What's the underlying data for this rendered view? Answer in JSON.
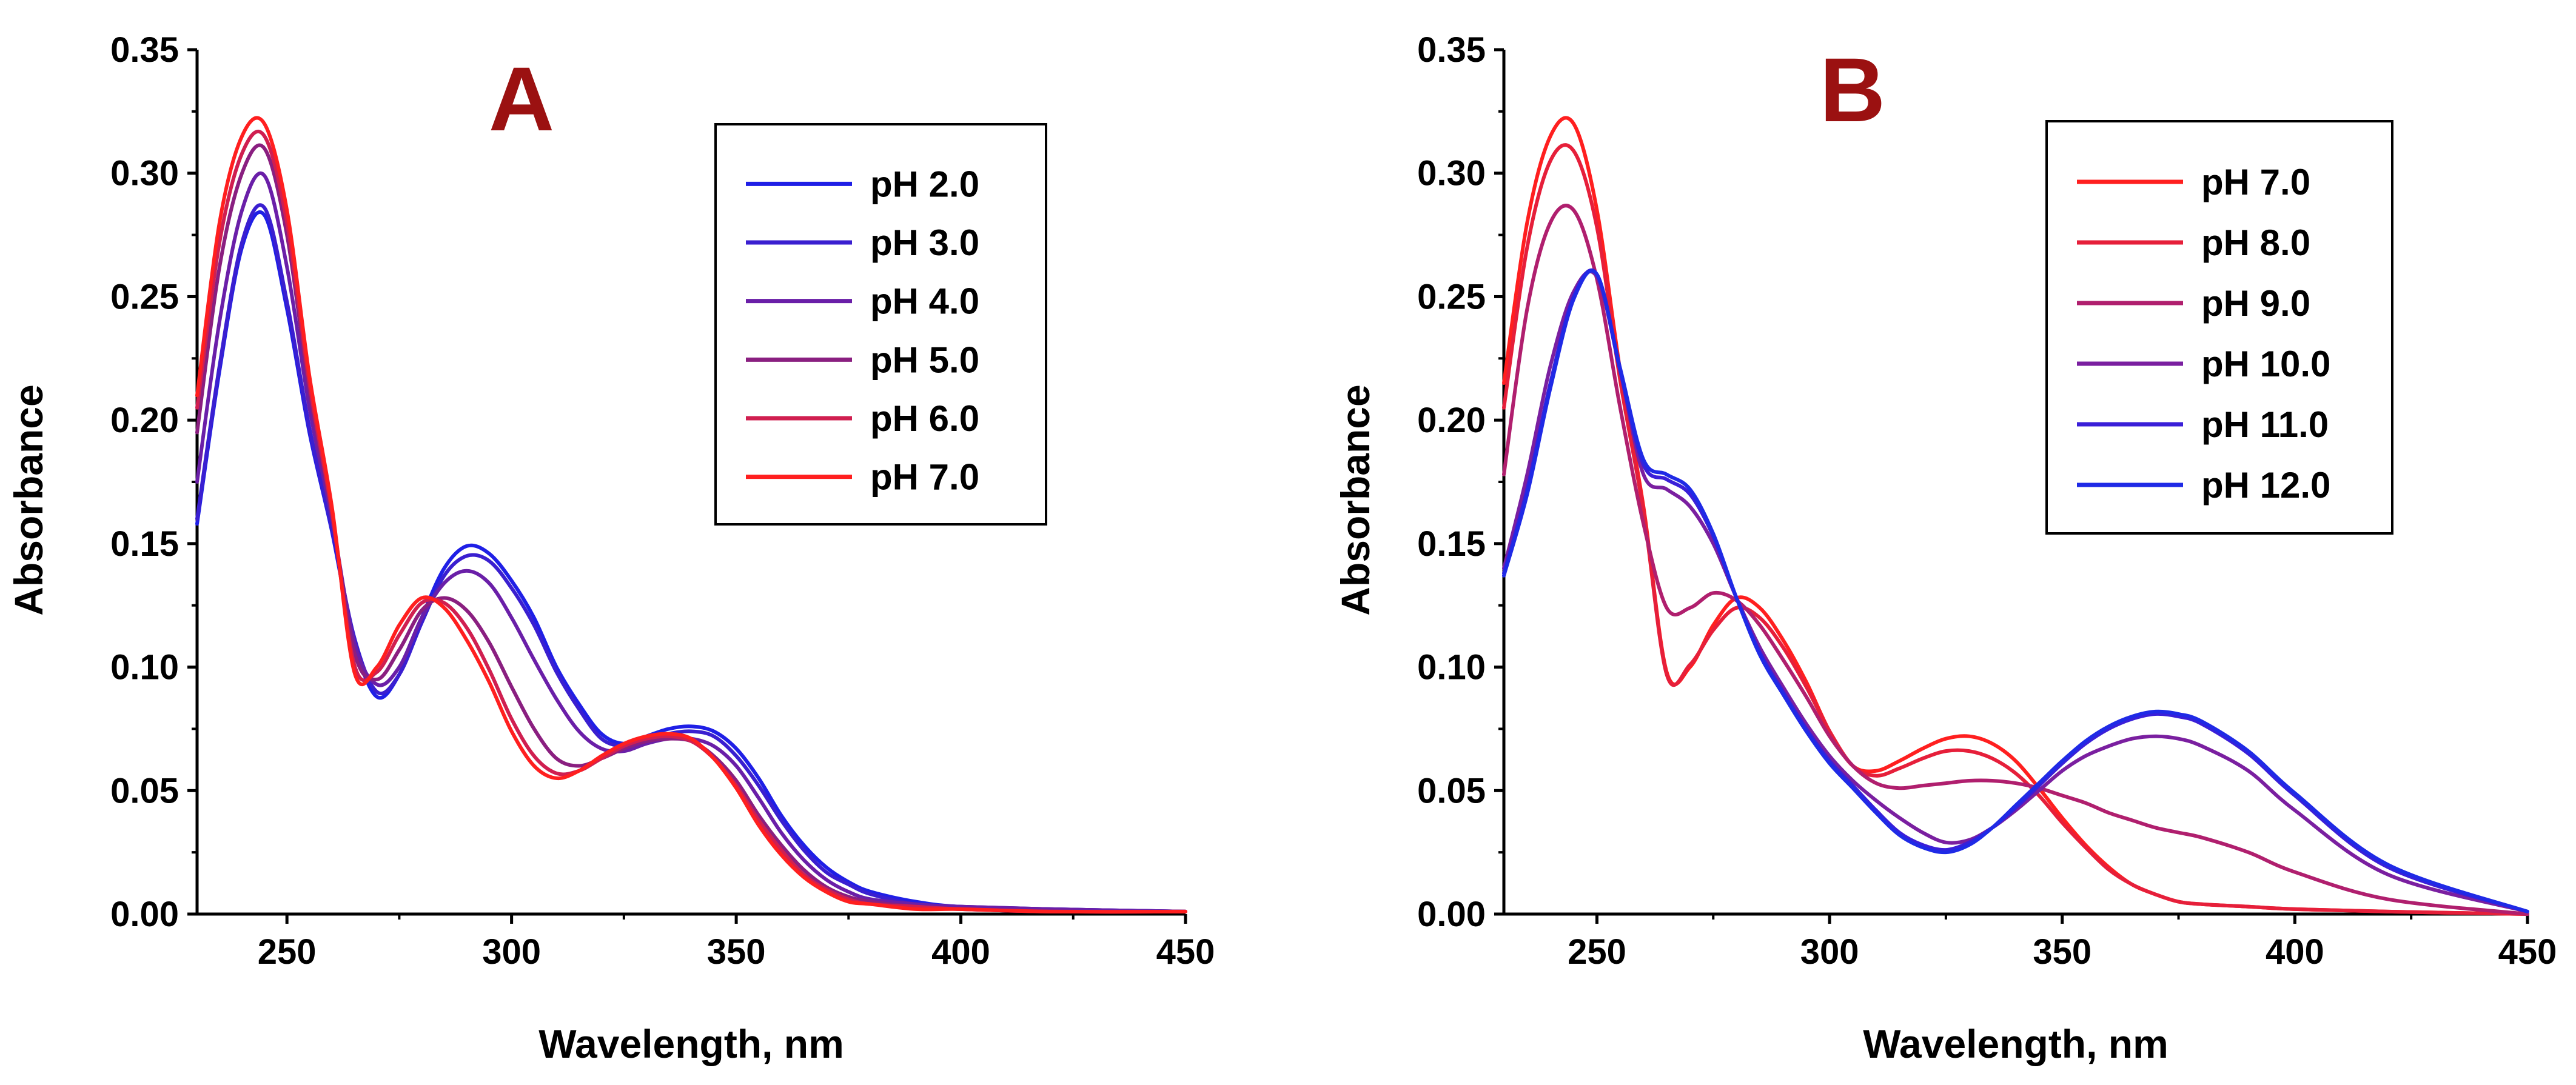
{
  "chart_data": [
    {
      "type": "line",
      "panel_label": "A",
      "xlabel": "Wavelength, nm",
      "ylabel": "Absorbance",
      "xlim": [
        230,
        450
      ],
      "ylim": [
        0,
        0.35
      ],
      "xticks": [
        "250",
        "300",
        "350",
        "400",
        "450"
      ],
      "yticks": [
        "0.00",
        "0.05",
        "0.10",
        "0.15",
        "0.20",
        "0.25",
        "0.30",
        "0.35"
      ],
      "legend_position": "top-right",
      "series": [
        {
          "name": "pH 2.0",
          "color": "#1f1fe6",
          "x": [
            230,
            235,
            240,
            245,
            250,
            255,
            260,
            265,
            270,
            275,
            280,
            285,
            290,
            295,
            300,
            305,
            310,
            315,
            320,
            325,
            330,
            335,
            340,
            345,
            350,
            355,
            360,
            365,
            370,
            375,
            380,
            390,
            400,
            420,
            450
          ],
          "y": [
            0.158,
            0.22,
            0.27,
            0.283,
            0.245,
            0.195,
            0.155,
            0.11,
            0.088,
            0.097,
            0.12,
            0.14,
            0.149,
            0.146,
            0.135,
            0.12,
            0.1,
            0.085,
            0.073,
            0.069,
            0.072,
            0.075,
            0.076,
            0.074,
            0.067,
            0.055,
            0.04,
            0.028,
            0.019,
            0.013,
            0.009,
            0.005,
            0.003,
            0.002,
            0.001
          ]
        },
        {
          "name": "pH 3.0",
          "color": "#3a1fd0",
          "x": [
            230,
            235,
            240,
            245,
            250,
            255,
            260,
            265,
            270,
            275,
            280,
            285,
            290,
            295,
            300,
            305,
            310,
            315,
            320,
            325,
            330,
            335,
            340,
            345,
            350,
            355,
            360,
            365,
            370,
            375,
            380,
            390,
            400,
            420,
            450
          ],
          "y": [
            0.16,
            0.222,
            0.272,
            0.286,
            0.248,
            0.197,
            0.156,
            0.112,
            0.09,
            0.097,
            0.118,
            0.137,
            0.145,
            0.143,
            0.132,
            0.117,
            0.098,
            0.083,
            0.071,
            0.068,
            0.07,
            0.073,
            0.074,
            0.072,
            0.064,
            0.052,
            0.038,
            0.026,
            0.017,
            0.012,
            0.008,
            0.004,
            0.003,
            0.002,
            0.001
          ]
        },
        {
          "name": "pH 4.0",
          "color": "#6a1fa8",
          "x": [
            230,
            235,
            240,
            245,
            250,
            255,
            260,
            265,
            270,
            275,
            280,
            285,
            290,
            295,
            300,
            305,
            310,
            315,
            320,
            325,
            330,
            335,
            340,
            345,
            350,
            355,
            360,
            365,
            370,
            375,
            380,
            390,
            400,
            420,
            450
          ],
          "y": [
            0.175,
            0.24,
            0.285,
            0.299,
            0.262,
            0.205,
            0.16,
            0.11,
            0.093,
            0.1,
            0.12,
            0.134,
            0.139,
            0.134,
            0.12,
            0.103,
            0.087,
            0.074,
            0.067,
            0.066,
            0.069,
            0.071,
            0.071,
            0.068,
            0.06,
            0.047,
            0.033,
            0.022,
            0.014,
            0.009,
            0.006,
            0.004,
            0.003,
            0.002,
            0.001
          ]
        },
        {
          "name": "pH 5.0",
          "color": "#8a1f80",
          "x": [
            230,
            235,
            240,
            245,
            250,
            255,
            260,
            265,
            270,
            275,
            280,
            285,
            290,
            295,
            300,
            305,
            310,
            315,
            320,
            325,
            330,
            335,
            340,
            345,
            350,
            355,
            360,
            365,
            370,
            375,
            380,
            390,
            400,
            420,
            450
          ],
          "y": [
            0.195,
            0.262,
            0.3,
            0.31,
            0.275,
            0.212,
            0.162,
            0.106,
            0.095,
            0.107,
            0.123,
            0.128,
            0.123,
            0.11,
            0.092,
            0.075,
            0.063,
            0.06,
            0.063,
            0.067,
            0.07,
            0.071,
            0.07,
            0.064,
            0.054,
            0.04,
            0.028,
            0.018,
            0.011,
            0.007,
            0.005,
            0.003,
            0.002,
            0.001,
            0.001
          ]
        },
        {
          "name": "pH 6.0",
          "color": "#d01f50",
          "x": [
            230,
            235,
            240,
            245,
            250,
            255,
            260,
            265,
            270,
            275,
            280,
            285,
            290,
            295,
            300,
            305,
            310,
            315,
            320,
            325,
            330,
            335,
            340,
            345,
            350,
            355,
            360,
            365,
            370,
            375,
            380,
            390,
            400,
            420,
            450
          ],
          "y": [
            0.205,
            0.272,
            0.308,
            0.315,
            0.28,
            0.215,
            0.163,
            0.101,
            0.098,
            0.113,
            0.126,
            0.126,
            0.116,
            0.099,
            0.079,
            0.064,
            0.057,
            0.058,
            0.063,
            0.068,
            0.071,
            0.072,
            0.07,
            0.063,
            0.052,
            0.038,
            0.026,
            0.016,
            0.01,
            0.006,
            0.004,
            0.003,
            0.002,
            0.001,
            0.001
          ]
        },
        {
          "name": "pH 7.0",
          "color": "#ff1f1f",
          "x": [
            230,
            235,
            240,
            245,
            250,
            255,
            260,
            265,
            270,
            275,
            280,
            285,
            290,
            295,
            300,
            305,
            310,
            315,
            320,
            325,
            330,
            335,
            340,
            345,
            350,
            355,
            360,
            365,
            370,
            375,
            380,
            390,
            400,
            420,
            450
          ],
          "y": [
            0.21,
            0.28,
            0.315,
            0.32,
            0.285,
            0.218,
            0.165,
            0.098,
            0.1,
            0.117,
            0.128,
            0.124,
            0.111,
            0.094,
            0.074,
            0.06,
            0.055,
            0.058,
            0.064,
            0.069,
            0.072,
            0.073,
            0.071,
            0.063,
            0.051,
            0.036,
            0.024,
            0.015,
            0.009,
            0.005,
            0.004,
            0.002,
            0.002,
            0.001,
            0.001
          ]
        }
      ]
    },
    {
      "type": "line",
      "panel_label": "B",
      "xlabel": "Wavelength, nm",
      "ylabel": "Absorbance",
      "xlim": [
        230,
        450
      ],
      "ylim": [
        0,
        0.35
      ],
      "xticks": [
        "250",
        "300",
        "350",
        "400",
        "450"
      ],
      "yticks": [
        "0.00",
        "0.05",
        "0.10",
        "0.15",
        "0.20",
        "0.25",
        "0.30",
        "0.35"
      ],
      "legend_position": "top-right",
      "series": [
        {
          "name": "pH 7.0",
          "color": "#ff1f1f",
          "x": [
            230,
            235,
            240,
            245,
            250,
            255,
            260,
            265,
            270,
            275,
            280,
            285,
            290,
            295,
            300,
            305,
            310,
            315,
            320,
            325,
            330,
            335,
            340,
            345,
            350,
            355,
            360,
            365,
            370,
            375,
            380,
            390,
            400,
            420,
            450
          ],
          "y": [
            0.215,
            0.28,
            0.315,
            0.32,
            0.285,
            0.22,
            0.165,
            0.098,
            0.1,
            0.117,
            0.128,
            0.124,
            0.111,
            0.094,
            0.074,
            0.06,
            0.058,
            0.062,
            0.067,
            0.071,
            0.072,
            0.069,
            0.062,
            0.051,
            0.039,
            0.028,
            0.019,
            0.012,
            0.008,
            0.005,
            0.004,
            0.003,
            0.002,
            0.001,
            0.0
          ]
        },
        {
          "name": "pH 8.0",
          "color": "#e61f3a",
          "x": [
            230,
            235,
            240,
            245,
            250,
            255,
            260,
            265,
            270,
            275,
            280,
            285,
            290,
            295,
            300,
            305,
            310,
            315,
            320,
            325,
            330,
            335,
            340,
            345,
            350,
            355,
            360,
            365,
            370,
            375,
            380,
            390,
            400,
            420,
            450
          ],
          "y": [
            0.205,
            0.27,
            0.305,
            0.309,
            0.278,
            0.216,
            0.163,
            0.097,
            0.101,
            0.115,
            0.124,
            0.12,
            0.108,
            0.092,
            0.074,
            0.06,
            0.056,
            0.059,
            0.063,
            0.066,
            0.066,
            0.063,
            0.057,
            0.048,
            0.037,
            0.027,
            0.018,
            0.012,
            0.008,
            0.005,
            0.004,
            0.003,
            0.002,
            0.001,
            0.0
          ]
        },
        {
          "name": "pH 9.0",
          "color": "#b01f6e",
          "x": [
            230,
            235,
            240,
            245,
            250,
            255,
            260,
            265,
            270,
            275,
            280,
            285,
            290,
            295,
            300,
            305,
            310,
            315,
            320,
            325,
            330,
            335,
            340,
            345,
            350,
            355,
            360,
            365,
            370,
            375,
            380,
            390,
            400,
            420,
            450
          ],
          "y": [
            0.178,
            0.245,
            0.28,
            0.285,
            0.257,
            0.205,
            0.158,
            0.124,
            0.124,
            0.13,
            0.127,
            0.117,
            0.103,
            0.088,
            0.072,
            0.06,
            0.053,
            0.051,
            0.052,
            0.053,
            0.054,
            0.054,
            0.053,
            0.051,
            0.048,
            0.045,
            0.041,
            0.038,
            0.035,
            0.033,
            0.031,
            0.025,
            0.017,
            0.006,
            0.0
          ]
        },
        {
          "name": "pH 10.0",
          "color": "#7a1fa0",
          "x": [
            230,
            235,
            240,
            245,
            250,
            255,
            260,
            265,
            270,
            275,
            280,
            285,
            290,
            295,
            300,
            305,
            310,
            315,
            320,
            325,
            330,
            335,
            340,
            345,
            350,
            355,
            360,
            365,
            370,
            375,
            380,
            390,
            400,
            420,
            450
          ],
          "y": [
            0.14,
            0.178,
            0.222,
            0.252,
            0.258,
            0.22,
            0.178,
            0.172,
            0.165,
            0.15,
            0.128,
            0.108,
            0.092,
            0.077,
            0.064,
            0.054,
            0.046,
            0.039,
            0.033,
            0.029,
            0.03,
            0.035,
            0.042,
            0.05,
            0.058,
            0.064,
            0.068,
            0.071,
            0.072,
            0.071,
            0.068,
            0.058,
            0.042,
            0.016,
            0.001
          ]
        },
        {
          "name": "pH 11.0",
          "color": "#3a1fd8",
          "x": [
            230,
            235,
            240,
            245,
            250,
            255,
            260,
            265,
            270,
            275,
            280,
            285,
            290,
            295,
            300,
            305,
            310,
            315,
            320,
            325,
            330,
            335,
            340,
            345,
            350,
            355,
            360,
            365,
            370,
            375,
            380,
            390,
            400,
            420,
            450
          ],
          "y": [
            0.138,
            0.172,
            0.215,
            0.25,
            0.259,
            0.22,
            0.182,
            0.176,
            0.17,
            0.153,
            0.128,
            0.106,
            0.09,
            0.075,
            0.062,
            0.052,
            0.042,
            0.033,
            0.028,
            0.026,
            0.029,
            0.035,
            0.043,
            0.052,
            0.061,
            0.069,
            0.075,
            0.079,
            0.081,
            0.08,
            0.077,
            0.065,
            0.048,
            0.019,
            0.001
          ]
        },
        {
          "name": "pH 12.0",
          "color": "#1f2ae6",
          "x": [
            230,
            235,
            240,
            245,
            250,
            255,
            260,
            265,
            270,
            275,
            280,
            285,
            290,
            295,
            300,
            305,
            310,
            315,
            320,
            325,
            330,
            335,
            340,
            345,
            350,
            355,
            360,
            365,
            370,
            375,
            380,
            390,
            400,
            420,
            450
          ],
          "y": [
            0.137,
            0.17,
            0.213,
            0.249,
            0.259,
            0.221,
            0.184,
            0.178,
            0.172,
            0.154,
            0.128,
            0.105,
            0.089,
            0.074,
            0.061,
            0.051,
            0.041,
            0.032,
            0.027,
            0.025,
            0.028,
            0.035,
            0.044,
            0.053,
            0.062,
            0.07,
            0.076,
            0.08,
            0.082,
            0.081,
            0.078,
            0.066,
            0.049,
            0.02,
            0.001
          ]
        }
      ]
    }
  ]
}
